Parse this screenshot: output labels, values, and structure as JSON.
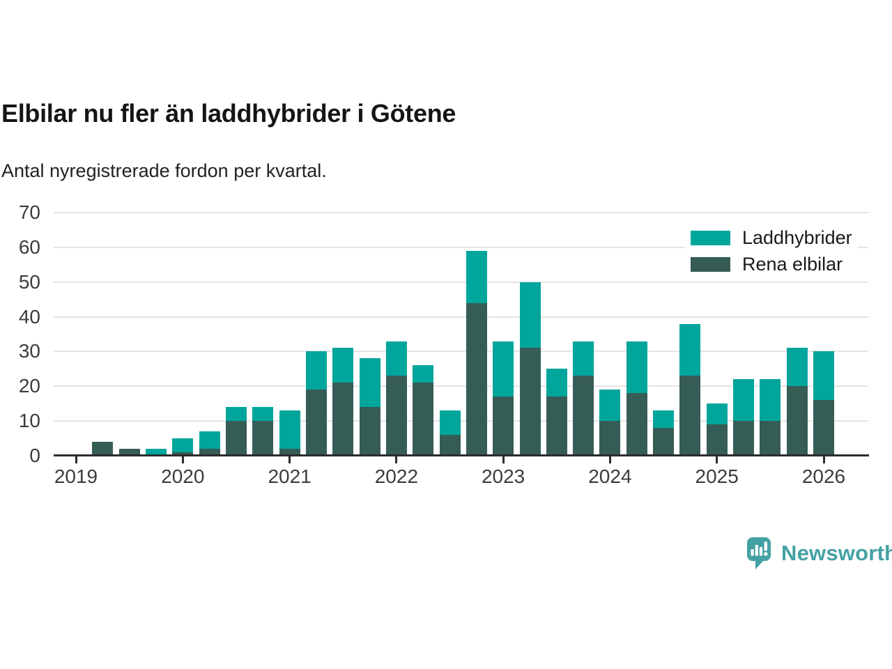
{
  "title": "Elbilar nu fler än laddhybrider i Götene",
  "subtitle": "Antal nyregistrerade fordon per kvartal.",
  "legend": [
    {
      "label": "Laddhybrider",
      "color": "#00a59c"
    },
    {
      "label": "Rena elbilar",
      "color": "#365c56"
    }
  ],
  "chart_data": {
    "type": "bar",
    "stacked": true,
    "title": "Elbilar nu fler än laddhybrider i Götene",
    "subtitle": "Antal nyregistrerade fordon per kvartal.",
    "x": [
      "2019 Q1",
      "2019 Q2",
      "2019 Q3",
      "2019 Q4",
      "2020 Q1",
      "2020 Q2",
      "2020 Q3",
      "2020 Q4",
      "2021 Q1",
      "2021 Q2",
      "2021 Q3",
      "2021 Q4",
      "2022 Q1",
      "2022 Q2",
      "2022 Q3",
      "2022 Q4",
      "2023 Q1",
      "2023 Q2",
      "2023 Q3",
      "2023 Q4",
      "2024 Q1",
      "2024 Q2",
      "2024 Q3",
      "2024 Q4",
      "2025 Q1",
      "2025 Q2",
      "2025 Q3",
      "2025 Q4",
      "2026 Q1"
    ],
    "series": [
      {
        "name": "Rena elbilar",
        "color": "#365c56",
        "values": [
          0,
          4,
          2,
          0,
          1,
          2,
          10,
          10,
          2,
          19,
          21,
          14,
          23,
          21,
          6,
          44,
          17,
          31,
          17,
          23,
          10,
          18,
          8,
          23,
          9,
          10,
          10,
          20,
          16
        ]
      },
      {
        "name": "Laddhybrider",
        "color": "#00a59c",
        "values": [
          0,
          0,
          0,
          2,
          4,
          5,
          4,
          4,
          11,
          11,
          10,
          14,
          10,
          5,
          7,
          15,
          16,
          19,
          8,
          10,
          9,
          15,
          5,
          15,
          6,
          12,
          12,
          11,
          14
        ]
      }
    ],
    "ylim": [
      0,
      70
    ],
    "yticks": [
      0,
      10,
      20,
      30,
      40,
      50,
      60,
      70
    ],
    "xticks": [
      "2019",
      "2020",
      "2021",
      "2022",
      "2023",
      "2024",
      "2025",
      "2026"
    ],
    "grid": "horizontal",
    "legend_position": "top-right"
  },
  "brand": {
    "name": "Newsworthy",
    "color": "#44a1a4"
  }
}
